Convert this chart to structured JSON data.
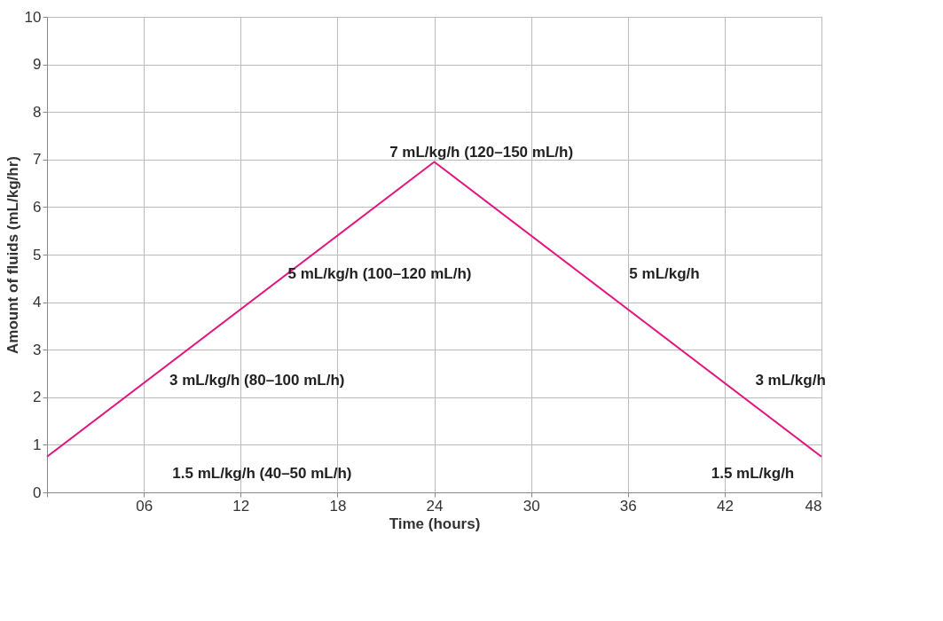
{
  "chart_data": {
    "type": "line",
    "xlabel": "Time (hours)",
    "ylabel": "Amount of fluids (mL/kg/hr)",
    "x": [
      0,
      24,
      48
    ],
    "series": [
      {
        "color": "#e2157f",
        "values": [
          0.75,
          6.95,
          0.75
        ]
      }
    ],
    "xlim": [
      0,
      48
    ],
    "ylim": [
      0,
      10
    ],
    "xticks": [
      {
        "value": 0,
        "label": null
      },
      {
        "value": 6,
        "label": "06"
      },
      12,
      18,
      24,
      30,
      36,
      42,
      48
    ],
    "yticks": [
      0,
      1,
      2,
      3,
      4,
      5,
      6,
      7,
      8,
      9,
      10
    ],
    "grid": true,
    "marker": "none",
    "line_style": "solid",
    "annotations": [
      "7 mL/kg/h (120–150 mL/h)",
      "5 mL/kg/h (100–120 mL/h)",
      "5 mL/kg/h",
      "3 mL/kg/h (80–100 mL/h)",
      "3 mL/kg/h",
      "1.5 mL/kg/h (40–50 mL/h)",
      "1.5 mL/kg/h"
    ]
  }
}
